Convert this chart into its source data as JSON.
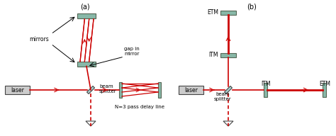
{
  "fig_width": 4.74,
  "fig_height": 1.92,
  "dpi": 100,
  "bg_color": "#ffffff",
  "beam_color": "#cc0000",
  "mirror_facecolor": "#88b8a8",
  "mirror_edgecolor": "#556655",
  "laser_facecolor": "#cccccc",
  "laser_edgecolor": "#444444",
  "bs_facecolor": "#aacccc",
  "bs_edgecolor": "#444444",
  "text_color": "#000000",
  "arrow_color": "#111111",
  "a_label": "(a)",
  "b_label": "(b)",
  "mirrors_text": "mirrors",
  "gap_text": "gap in\nmirror",
  "bs_text_a": "beam\nsplitter",
  "bs_text_b": "beam\nsplitter",
  "laser_text": "laser",
  "delay_text": "N=3 pass delay line",
  "etm_top": "ETM",
  "etm_right": "ETM",
  "itm_vert": "ITM",
  "itm_horiz": "ITM"
}
